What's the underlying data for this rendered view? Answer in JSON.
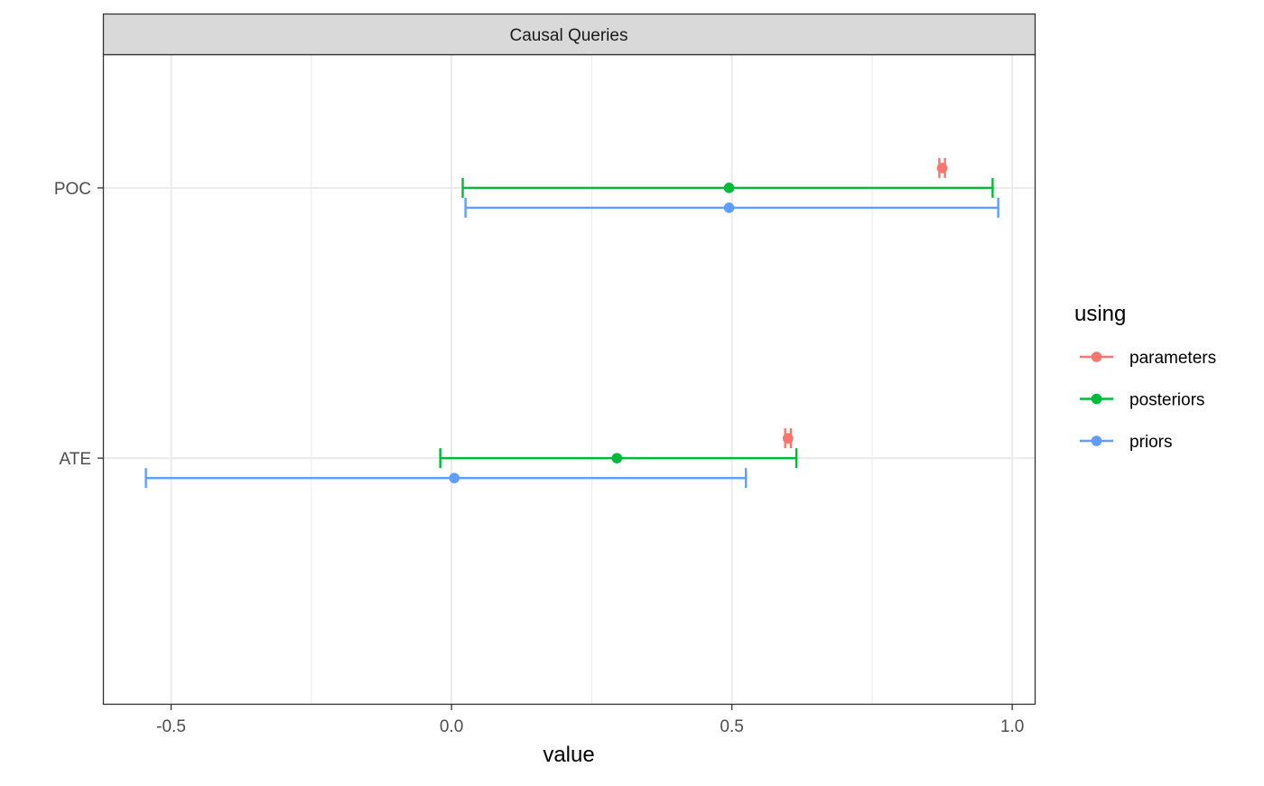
{
  "chart_data": {
    "type": "scatter",
    "subtype": "point-range",
    "facet_title": "Causal Queries",
    "xlabel": "value",
    "ylabel": "",
    "xlim": [
      -0.62,
      1.04
    ],
    "x_ticks": [
      -0.5,
      0.0,
      0.5,
      1.0
    ],
    "x_tick_labels": [
      "-0.5",
      "0.0",
      "0.5",
      "1.0"
    ],
    "x_minor_ticks": [
      -0.25,
      0.25,
      0.75
    ],
    "y_categories": [
      "ATE",
      "POC"
    ],
    "grid": true,
    "legend": {
      "title": "using",
      "position": "right",
      "entries": [
        {
          "name": "parameters",
          "color": "#F8766D"
        },
        {
          "name": "posteriors",
          "color": "#00BA38"
        },
        {
          "name": "priors",
          "color": "#619CFF"
        }
      ]
    },
    "series": [
      {
        "name": "parameters",
        "color": "#F8766D",
        "points": [
          {
            "query": "POC",
            "value": 0.875,
            "lower": 0.87,
            "upper": 0.88
          },
          {
            "query": "ATE",
            "value": 0.6,
            "lower": 0.595,
            "upper": 0.605
          }
        ]
      },
      {
        "name": "posteriors",
        "color": "#00BA38",
        "points": [
          {
            "query": "POC",
            "value": 0.495,
            "lower": 0.02,
            "upper": 0.965
          },
          {
            "query": "ATE",
            "value": 0.295,
            "lower": -0.02,
            "upper": 0.615
          }
        ]
      },
      {
        "name": "priors",
        "color": "#619CFF",
        "points": [
          {
            "query": "POC",
            "value": 0.495,
            "lower": 0.025,
            "upper": 0.975
          },
          {
            "query": "ATE",
            "value": 0.005,
            "lower": -0.545,
            "upper": 0.525
          }
        ]
      }
    ]
  }
}
